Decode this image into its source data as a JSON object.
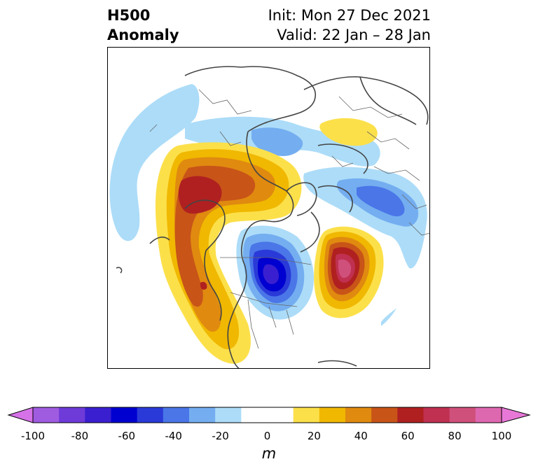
{
  "title": {
    "left_line1": "H500",
    "left_line2": "Anomaly",
    "right_line1": "Init: Mon 27 Dec 2021",
    "right_line2": "Valid: 22 Jan – 28 Jan"
  },
  "colorbar": {
    "units": "m",
    "ticks": [
      "-100",
      "-80",
      "-60",
      "-40",
      "-20",
      "0",
      "20",
      "40",
      "60",
      "80",
      "100"
    ],
    "colors": [
      "#d672e8",
      "#a05ce0",
      "#6e3ad8",
      "#3a1fd0",
      "#0000d0",
      "#2a3ad8",
      "#4a76e8",
      "#74aef0",
      "#acdcf8",
      "#ffffff",
      "#ffffff",
      "#fce04a",
      "#f0b800",
      "#e08a10",
      "#c85418",
      "#b02020",
      "#c03050",
      "#d0507c",
      "#de68b0",
      "#e878d8"
    ]
  },
  "map": {
    "colors": {
      "lightblue": "#acdcf8",
      "blue1": "#74aef0",
      "blue2": "#4a76e8",
      "blue3": "#2a3ad8",
      "blue4": "#0000d0",
      "yellow": "#fce04a",
      "gold": "#f0b800",
      "orange": "#e08a10",
      "darkorange": "#c85418",
      "red": "#b02020",
      "crimson": "#c03050",
      "pink": "#d0507c",
      "magenta": "#de68b0"
    }
  }
}
